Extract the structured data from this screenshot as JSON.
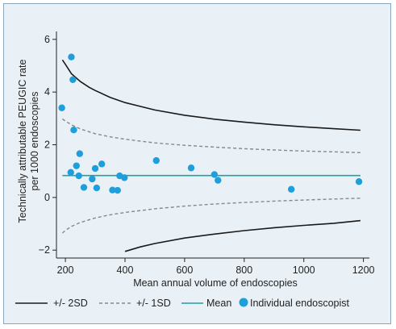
{
  "chart_data": {
    "type": "scatter",
    "title": "",
    "xlabel": "Mean annual volume of endoscopies",
    "ylabel_line1": "Technically attributable PEUGIC rate",
    "ylabel_line2": "per 1000 endoscopies",
    "xlim": [
      170,
      1220
    ],
    "ylim": [
      -2.3,
      6.3
    ],
    "x_ticks": [
      200,
      400,
      600,
      800,
      1000,
      1200
    ],
    "x_tick_labels": [
      "200",
      "400",
      "600",
      "800",
      "1000",
      "1200"
    ],
    "y_ticks": [
      -2,
      0,
      2,
      4,
      6
    ],
    "y_tick_labels": [
      "−2",
      "0",
      "2",
      "4",
      "6"
    ],
    "grid": false,
    "legend": {
      "placement": "bottom",
      "items": [
        {
          "key": "sd2",
          "label": "+/- 2SD",
          "style": "solid",
          "color": "#1a1a1a"
        },
        {
          "key": "sd1",
          "label": "+/- 1SD",
          "style": "dashed",
          "color": "#888888"
        },
        {
          "key": "mean",
          "label": "Mean",
          "style": "solid",
          "color": "#1aa3a3"
        },
        {
          "key": "points",
          "label": "Individual endoscopist",
          "style": "marker",
          "color": "#1e9fdc"
        }
      ]
    },
    "mean": 0.83,
    "series": [
      {
        "key": "upper2sd",
        "x": [
          190,
          200,
          220,
          250,
          280,
          300,
          350,
          400,
          500,
          600,
          700,
          800,
          900,
          1000,
          1100,
          1190
        ],
        "y": [
          5.22,
          5.05,
          4.7,
          4.4,
          4.18,
          4.06,
          3.8,
          3.6,
          3.32,
          3.12,
          2.97,
          2.86,
          2.76,
          2.68,
          2.61,
          2.55
        ]
      },
      {
        "key": "upper1sd",
        "x": [
          190,
          200,
          220,
          250,
          300,
          350,
          400,
          500,
          600,
          700,
          800,
          900,
          1000,
          1100,
          1190
        ],
        "y": [
          2.98,
          2.9,
          2.76,
          2.6,
          2.42,
          2.3,
          2.21,
          2.07,
          1.98,
          1.91,
          1.85,
          1.8,
          1.76,
          1.73,
          1.7
        ]
      },
      {
        "key": "lower1sd",
        "x": [
          190,
          200,
          220,
          250,
          300,
          350,
          400,
          500,
          600,
          700,
          800,
          900,
          1000,
          1100,
          1190
        ],
        "y": [
          -1.35,
          -1.25,
          -1.1,
          -0.95,
          -0.78,
          -0.66,
          -0.57,
          -0.43,
          -0.33,
          -0.25,
          -0.19,
          -0.14,
          -0.1,
          -0.06,
          -0.03
        ]
      },
      {
        "key": "lower2sd",
        "x": [
          400,
          450,
          500,
          600,
          700,
          800,
          900,
          1000,
          1100,
          1190
        ],
        "y": [
          -2.05,
          -1.88,
          -1.75,
          -1.54,
          -1.39,
          -1.26,
          -1.15,
          -1.06,
          -0.98,
          -0.88
        ]
      }
    ],
    "points": [
      {
        "x": 188,
        "y": 3.4
      },
      {
        "x": 220,
        "y": 5.33
      },
      {
        "x": 225,
        "y": 4.47
      },
      {
        "x": 228,
        "y": 2.56
      },
      {
        "x": 218,
        "y": 0.95
      },
      {
        "x": 237,
        "y": 1.2
      },
      {
        "x": 245,
        "y": 0.82
      },
      {
        "x": 248,
        "y": 1.66
      },
      {
        "x": 262,
        "y": 0.38
      },
      {
        "x": 290,
        "y": 0.7
      },
      {
        "x": 300,
        "y": 1.1
      },
      {
        "x": 305,
        "y": 0.36
      },
      {
        "x": 322,
        "y": 1.27
      },
      {
        "x": 358,
        "y": 0.28
      },
      {
        "x": 375,
        "y": 0.27
      },
      {
        "x": 382,
        "y": 0.82
      },
      {
        "x": 398,
        "y": 0.75
      },
      {
        "x": 505,
        "y": 1.4
      },
      {
        "x": 622,
        "y": 1.12
      },
      {
        "x": 700,
        "y": 0.87
      },
      {
        "x": 712,
        "y": 0.65
      },
      {
        "x": 958,
        "y": 0.31
      },
      {
        "x": 1185,
        "y": 0.6
      }
    ],
    "colors": {
      "sd2": "#1a1a1a",
      "sd1": "#888888",
      "mean": "#1aa3a3",
      "points": "#1e9fdc",
      "axis": "#222222"
    }
  }
}
